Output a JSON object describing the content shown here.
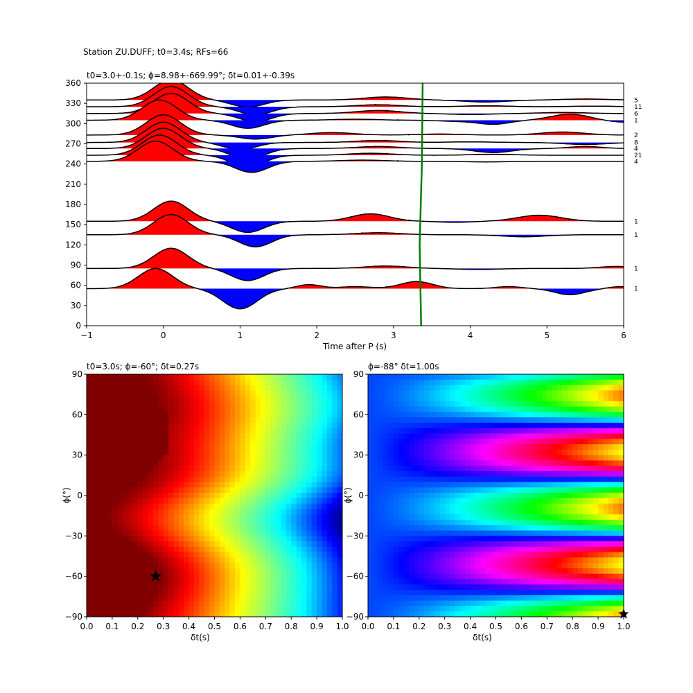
{
  "figure": {
    "suptitle": "Station ZU.DUFF; t0=3.4s; RFs=66"
  },
  "chart_data": [
    {
      "type": "line",
      "panel": "receiver-function-traces",
      "title": "t0=3.0+-0.1s; ϕ=8.98+-669.99°; δt=0.01+-0.39s",
      "xlabel": "Time after P (s)",
      "ylabel": "",
      "xlim": [
        -1,
        6
      ],
      "ylim": [
        0,
        360
      ],
      "xticks": [
        "−1",
        "0",
        "1",
        "2",
        "3",
        "4",
        "5",
        "6"
      ],
      "yticks": [
        "0",
        "30",
        "60",
        "90",
        "120",
        "150",
        "180",
        "210",
        "240",
        "270",
        "300",
        "330",
        "360"
      ],
      "fill_positive_color": "#ff0000",
      "fill_negative_color": "#0000ff",
      "t0_line": {
        "color": "#008000",
        "values": [
          [
            3.36,
            0
          ],
          [
            3.34,
            120
          ],
          [
            3.37,
            240
          ],
          [
            3.38,
            360
          ]
        ]
      },
      "traces": [
        {
          "baz": 55,
          "count": "1",
          "amp": 30,
          "peaks": [
            [
              -0.1,
              1.0,
              0.32
            ],
            [
              1.0,
              -1.0,
              0.32
            ],
            [
              1.9,
              0.2,
              0.22
            ],
            [
              2.5,
              0.1,
              0.3
            ],
            [
              3.3,
              0.35,
              0.3
            ],
            [
              4.5,
              0.1,
              0.25
            ],
            [
              5.3,
              -0.3,
              0.28
            ],
            [
              5.95,
              0.1,
              0.2
            ]
          ]
        },
        {
          "baz": 85,
          "count": "1",
          "amp": 30,
          "peaks": [
            [
              0.1,
              1.0,
              0.32
            ],
            [
              1.1,
              -0.6,
              0.3
            ],
            [
              2.9,
              0.12,
              0.4
            ],
            [
              4.1,
              -0.05,
              0.4
            ],
            [
              5.9,
              0.1,
              0.3
            ]
          ]
        },
        {
          "baz": 135,
          "count": "1",
          "amp": 30,
          "peaks": [
            [
              0.1,
              1.0,
              0.32
            ],
            [
              1.2,
              -0.6,
              0.3
            ],
            [
              2.8,
              0.1,
              0.42
            ],
            [
              4.7,
              -0.1,
              0.4
            ]
          ]
        },
        {
          "baz": 155,
          "count": "1",
          "amp": 30,
          "peaks": [
            [
              0.1,
              1.0,
              0.32
            ],
            [
              1.1,
              -0.55,
              0.3
            ],
            [
              2.7,
              0.37,
              0.35
            ],
            [
              3.8,
              -0.05,
              0.3
            ],
            [
              4.9,
              0.3,
              0.4
            ]
          ]
        },
        {
          "baz": 244,
          "count": "4",
          "amp": 30,
          "peaks": [
            [
              -0.1,
              1.0,
              0.32
            ],
            [
              1.15,
              -0.55,
              0.3
            ],
            [
              2.6,
              0.06,
              0.4
            ],
            [
              4.2,
              -0.03,
              0.4
            ]
          ]
        },
        {
          "baz": 253,
          "count": "21",
          "amp": 30,
          "peaks": [
            [
              -0.05,
              1.0,
              0.32
            ],
            [
              1.1,
              -0.6,
              0.3
            ],
            [
              2.7,
              0.1,
              0.4
            ],
            [
              4.3,
              0.05,
              0.4
            ]
          ]
        },
        {
          "baz": 263,
          "count": "4",
          "amp": 30,
          "peaks": [
            [
              0.0,
              1.0,
              0.32
            ],
            [
              1.1,
              -0.55,
              0.3
            ],
            [
              2.8,
              0.1,
              0.4
            ],
            [
              4.3,
              -0.2,
              0.35
            ],
            [
              5.5,
              0.1,
              0.3
            ]
          ]
        },
        {
          "baz": 272,
          "count": "8",
          "amp": 30,
          "peaks": [
            [
              0.0,
              1.0,
              0.32
            ],
            [
              1.0,
              -0.35,
              0.3
            ],
            [
              2.8,
              0.1,
              0.4
            ],
            [
              4.0,
              0.03,
              0.4
            ],
            [
              5.5,
              -0.1,
              0.4
            ]
          ]
        },
        {
          "baz": 283,
          "count": "2",
          "amp": 30,
          "peaks": [
            [
              0.0,
              1.0,
              0.32
            ],
            [
              1.2,
              -0.2,
              0.3
            ],
            [
              2.2,
              0.12,
              0.4
            ],
            [
              3.6,
              0.05,
              0.4
            ],
            [
              5.2,
              0.15,
              0.4
            ]
          ]
        },
        {
          "baz": 305,
          "count": "1",
          "amp": 30,
          "peaks": [
            [
              -0.05,
              1.0,
              0.32
            ],
            [
              1.1,
              -0.4,
              0.3
            ],
            [
              2.5,
              0.05,
              0.4
            ],
            [
              3.8,
              -0.05,
              0.3
            ],
            [
              4.3,
              -0.2,
              0.3
            ],
            [
              5.3,
              0.3,
              0.35
            ],
            [
              6.0,
              -0.1,
              0.3
            ]
          ]
        },
        {
          "baz": 315,
          "count": "6",
          "amp": 30,
          "peaks": [
            [
              0.1,
              1.0,
              0.32
            ],
            [
              1.2,
              -0.4,
              0.3
            ],
            [
              2.8,
              0.15,
              0.4
            ],
            [
              4.0,
              -0.05,
              0.4
            ],
            [
              5.2,
              0.05,
              0.4
            ]
          ]
        },
        {
          "baz": 325,
          "count": "11",
          "amp": 30,
          "peaks": [
            [
              0.1,
              1.0,
              0.32
            ],
            [
              1.2,
              -0.4,
              0.3
            ],
            [
              2.8,
              0.1,
              0.4
            ],
            [
              4.2,
              0.05,
              0.4
            ],
            [
              5.6,
              0.03,
              0.4
            ]
          ]
        },
        {
          "baz": 335,
          "count": "5",
          "amp": 30,
          "peaks": [
            [
              0.1,
              1.0,
              0.32
            ],
            [
              1.1,
              -0.35,
              0.3
            ],
            [
              2.9,
              0.15,
              0.4
            ],
            [
              4.2,
              -0.1,
              0.4
            ],
            [
              5.5,
              0.05,
              0.4
            ]
          ]
        }
      ]
    },
    {
      "type": "heatmap",
      "panel": "energy-grid",
      "title": "t0=3.0s; ϕ=-60°; δt=0.27s",
      "xlabel": "δt(s)",
      "ylabel": "ϕ(°)",
      "xlim": [
        0,
        1
      ],
      "ylim": [
        -90,
        90
      ],
      "xticks": [
        "0.0",
        "0.1",
        "0.2",
        "0.3",
        "0.4",
        "0.5",
        "0.6",
        "0.7",
        "0.8",
        "0.9",
        "1.0"
      ],
      "yticks": [
        "−90",
        "−60",
        "−30",
        "0",
        "30",
        "60",
        "90"
      ],
      "colormap": "jet",
      "marker": {
        "dt": 0.27,
        "phi": -60,
        "symbol": "star"
      }
    },
    {
      "type": "heatmap",
      "panel": "phase-grid",
      "title": "ϕ=-88° δt=1.00s",
      "xlabel": "δt(s)",
      "ylabel": "ϕ(°)",
      "xlim": [
        0,
        1
      ],
      "ylim": [
        -90,
        90
      ],
      "xticks": [
        "0.0",
        "0.1",
        "0.2",
        "0.3",
        "0.4",
        "0.5",
        "0.6",
        "0.7",
        "0.8",
        "0.9",
        "1.0"
      ],
      "yticks": [
        "−90",
        "−60",
        "−30",
        "0",
        "30",
        "60",
        "90"
      ],
      "colormap": "hsv",
      "marker": {
        "dt": 1.0,
        "phi": -88,
        "symbol": "star"
      }
    }
  ]
}
